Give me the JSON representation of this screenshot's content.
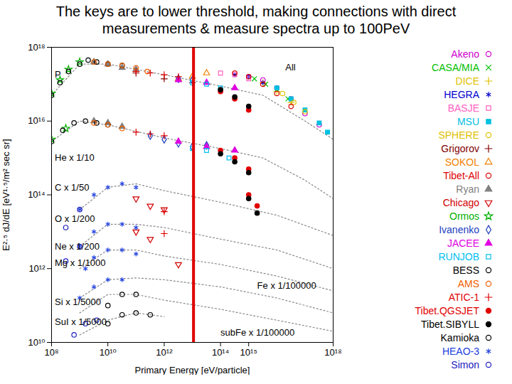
{
  "chart_data": {
    "type": "scatter",
    "title": "The keys are to lower threshold, making connections with direct measurements & measure spectra up to 100PeV",
    "x_label": "Primary Energy [eV/particle]",
    "y_label": "E²·⁵ dJ/dE [eV¹·⁵/m² sec sr]",
    "log": true,
    "grid": false,
    "legend": "right",
    "xlim": [
      100000000.0,
      1e+18
    ],
    "ylim": [
      10000000000.0,
      1e+18
    ],
    "xticks": [
      {
        "value": 100000000.0,
        "label": "10⁸"
      },
      {
        "value": 10000000000.0,
        "label": "10¹⁰"
      },
      {
        "value": 1000000000000.0,
        "label": "10¹²"
      },
      {
        "value": 100000000000000.0,
        "label": "10¹⁴"
      },
      {
        "value": 1000000000000000.0,
        "label": "10¹⁵"
      },
      {
        "value": 1e+18,
        "label": "10¹⁸"
      }
    ],
    "yticks": [
      {
        "value": 10000000000.0,
        "label": "10¹⁰"
      },
      {
        "value": 1000000000000.0,
        "label": "10¹²"
      },
      {
        "value": 100000000000000.0,
        "label": "10¹⁴"
      },
      {
        "value": 1e+16,
        "label": "10¹⁶"
      },
      {
        "value": 1e+18,
        "label": "10¹⁸"
      }
    ],
    "reference_line": {
      "x": 11000000000000.0,
      "color": "#e00000"
    },
    "annotations": [
      {
        "text": "P",
        "x": 130000000.0,
        "y": 1.8e+17
      },
      {
        "text": "He x 1/10",
        "x": 130000000.0,
        "y": 1000000000000000.0
      },
      {
        "text": "C x 1/50",
        "x": 130000000.0,
        "y": 160000000000000.0
      },
      {
        "text": "O x 1/200",
        "x": 130000000.0,
        "y": 22000000000000.0
      },
      {
        "text": "Ne x 1/200",
        "x": 130000000.0,
        "y": 4000000000000.0
      },
      {
        "text": "Mg x 1/1000",
        "x": 130000000.0,
        "y": 1400000000000.0
      },
      {
        "text": "Si x 1/5000",
        "x": 130000000.0,
        "y": 126000000000.0
      },
      {
        "text": "SuI x 1/5000",
        "x": 130000000.0,
        "y": 35000000000.0
      },
      {
        "text": "Fe x 1/100000",
        "x": 2000000000000000.0,
        "y": 350000000000.0
      },
      {
        "text": "subFe x 1/100000",
        "x": 100000000000000.0,
        "y": 18000000000.0
      },
      {
        "text": "All",
        "x": 2e+16,
        "y": 2.8e+17
      }
    ],
    "model_curves": [
      {
        "color": "#888888",
        "line_style": "dotted",
        "x": [
          100000000.0,
          1000000000.0,
          10000000000.0,
          1000000000000.0,
          100000000000000.0,
          3200000000000000.0,
          1e+17,
          1e+18
        ],
        "values": [
          5e+16,
          3.5e+17,
          3.5e+17,
          1.8e+17,
          8.9e+16,
          5e+16,
          1e+16,
          3200000000000000.0
        ]
      },
      {
        "color": "#888888",
        "line_style": "dotted",
        "x": [
          100000000.0,
          1000000000.0,
          10000000000.0,
          1000000000000.0,
          100000000000000.0,
          3200000000000000.0,
          1e+17,
          1e+18
        ],
        "values": [
          2800000000000000.0,
          1e+16,
          7900000000000000.0,
          3500000000000000.0,
          1800000000000000.0,
          1000000000000000.0,
          250000000000000.0,
          79000000000000.0
        ]
      },
      {
        "color": "#888888",
        "line_style": "dotted",
        "x": [
          1000000000.0,
          10000000000.0,
          100000000000.0,
          1000000000000.0,
          100000000000000.0,
          1e+16,
          1e+18
        ],
        "values": [
          40000000000000.0,
          160000000000000.0,
          200000000000000.0,
          130000000000000.0,
          63000000000000.0,
          28000000000000.0,
          7900000000000.0
        ]
      },
      {
        "color": "#888888",
        "line_style": "dotted",
        "x": [
          1000000000.0,
          10000000000.0,
          100000000000.0,
          1000000000000.0,
          100000000000000.0,
          1e+16,
          1e+18
        ],
        "values": [
          4000000000000.0,
          16000000000000.0,
          16000000000000.0,
          13000000000000.0,
          6300000000000.0,
          3200000000000.0,
          1000000000000.0
        ]
      },
      {
        "color": "#888888",
        "line_style": "dotted",
        "x": [
          1000000000.0,
          10000000000.0,
          100000000000.0,
          1000000000000.0,
          100000000000000.0,
          1e+16,
          1e+18
        ],
        "values": [
          1000000000000.0,
          3200000000000.0,
          3200000000000.0,
          2200000000000.0,
          1300000000000.0,
          630000000000.0,
          250000000000.0
        ]
      },
      {
        "color": "#888888",
        "line_style": "dotted",
        "x": [
          1000000000.0,
          10000000000.0,
          100000000000.0,
          1000000000000.0,
          100000000000000.0,
          1e+16,
          1e+18
        ],
        "values": [
          160000000000.0,
          500000000000.0,
          560000000000.0,
          500000000000.0,
          320000000000.0,
          160000000000.0,
          63000000000.0
        ]
      },
      {
        "color": "#888888",
        "line_style": "dotted",
        "x": [
          1000000000.0,
          10000000000.0,
          100000000000.0,
          1000000000000.0,
          100000000000000.0,
          1e+16,
          1e+18
        ],
        "values": [
          63000000000.0,
          200000000000.0,
          200000000000.0,
          140000000000.0,
          79000000000.0,
          40000000000.0,
          20000000000.0
        ]
      },
      {
        "color": "#888888",
        "line_style": "dotted",
        "x": [
          1000000000.0,
          10000000000.0,
          100000000000.0,
          1000000000000.0
        ],
        "values": [
          16000000000.0,
          40000000000.0,
          63000000000.0,
          50000000000.0
        ]
      }
    ],
    "series": [
      {
        "name": "Akeno",
        "color": "#d000d0",
        "marker": "circle",
        "x": [
          1000000000000000.0,
          3200000000000000.0,
          1e+16,
          3.2e+16,
          1e+17,
          3.2e+17
        ],
        "values": [
          1.6e+17,
          1.3e+17,
          7.9e+16,
          4e+16,
          1.6e+16,
          7900000000000000.0
        ]
      },
      {
        "name": "CASA/MIA",
        "color": "#00c000",
        "marker": "times",
        "x": [
          1600000000000000.0,
          4000000000000000.0,
          1e+16,
          2.5e+16
        ],
        "values": [
          1.4e+17,
          1e+17,
          7.1e+16,
          4e+16
        ]
      },
      {
        "name": "DICE",
        "color": "#e0c000",
        "marker": "plus",
        "x": [
          3200000000000000.0,
          1e+16,
          3.2e+16
        ],
        "values": [
          1.1e+17,
          6.3e+16,
          3.2e+16
        ]
      },
      {
        "name": "HEGRA",
        "color": "#0000d0",
        "marker": "asterisk",
        "x": [
          320000000000000.0,
          1000000000000000.0,
          3200000000000000.0,
          1e+16
        ],
        "values": [
          1.8e+17,
          1.6e+17,
          1.1e+17,
          7.9e+16
        ]
      },
      {
        "name": "BASJE",
        "color": "#ff60c0",
        "marker": "square",
        "x": [
          100000000000000.0,
          320000000000000.0,
          1000000000000000.0
        ],
        "values": [
          2e+17,
          1.8e+17,
          1.4e+17
        ]
      },
      {
        "name": "MSU",
        "color": "#00c0e0",
        "marker": "box",
        "x": [
          1e+16,
          3.2e+16,
          1e+17,
          3.2e+17,
          6.3e+17
        ],
        "values": [
          7.9e+16,
          4e+16,
          2e+16,
          8900000000000000.0,
          5000000000000000.0
        ]
      },
      {
        "name": "SPHERE",
        "color": "#e0c000",
        "marker": "circle",
        "x": [
          1.6e+16,
          4e+16,
          1e+17
        ],
        "values": [
          5.6e+16,
          3.2e+16,
          1.8e+16
        ]
      },
      {
        "name": "Grigorov",
        "color": "#800000",
        "marker": "plus",
        "x": [
          100000000000.0,
          1000000000000.0,
          10000000000000.0
        ],
        "values": [
          2e+17,
          1.4e+17,
          1.1e+17
        ]
      },
      {
        "name": "SOKOL",
        "color": "#f08000",
        "marker": "triangle",
        "x": [
          3200000000000.0,
          10000000000000.0,
          32000000000000.0
        ],
        "values": [
          1.4e+17,
          1.6e+17,
          2e+17
        ]
      },
      {
        "name": "Tibet-All",
        "color": "#e00000",
        "marker": "circle",
        "x": [
          320000000000000.0,
          1000000000000000.0,
          3200000000000000.0,
          1e+16,
          3.2e+16
        ],
        "values": [
          2e+17,
          1.6e+17,
          1e+17,
          5.6e+16,
          2.5e+16
        ]
      },
      {
        "name": "Ryan",
        "color": "#808080",
        "marker": "triangle-filled",
        "x": [
          3200000000.0,
          10000000000.0,
          32000000000.0,
          100000000000.0,
          3200000000.0,
          10000000000.0,
          32000000000.0
        ],
        "values": [
          4e+17,
          3.5e+17,
          2.8e+17,
          2.5e+17,
          1e+16,
          8900000000000000.0,
          7100000000000000.0
        ]
      },
      {
        "name": "Chicago",
        "color": "#d00000",
        "marker": "triangle-down",
        "x": [
          100000000000.0,
          320000000000.0,
          1000000000000.0,
          100000000000.0,
          320000000000.0,
          3200000000000.0
        ],
        "values": [
          79000000000000.0,
          50000000000000.0,
          40000000000000.0,
          10000000000000.0,
          6300000000000.0,
          1300000000000.0
        ]
      },
      {
        "name": "Ormos",
        "color": "#00b000",
        "marker": "star",
        "x": [
          100000000.0,
          200000000.0,
          400000000.0,
          1000000000.0,
          100000000.0,
          320000000.0
        ],
        "values": [
          5.6e+16,
          1.3e+17,
          2.5e+17,
          4e+17,
          3200000000000000.0,
          6300000000000000.0
        ]
      },
      {
        "name": "Ivanenko",
        "color": "#2040c0",
        "marker": "diamond",
        "x": [
          3200000000000.0,
          10000000000000.0,
          320000000000.0,
          1000000000000.0,
          3200000000000.0,
          10000000000000.0,
          32000000000000.0
        ],
        "values": [
          1.4e+17,
          1.3e+17,
          4000000000000000.0,
          3200000000000000.0,
          2500000000000000.0,
          2000000000000000.0,
          2200000000000000.0
        ]
      },
      {
        "name": "JACEE",
        "color": "#e000e0",
        "marker": "triangle-filled",
        "x": [
          3200000000000.0,
          32000000000000.0,
          320000000000000.0,
          3200000000000.0,
          32000000000000.0,
          320000000000000.0
        ],
        "values": [
          1.3e+17,
          1.1e+17,
          7.9e+16,
          2800000000000000.0,
          2000000000000000.0,
          1600000000000000.0
        ]
      },
      {
        "name": "RUNJOB",
        "color": "#00c0f0",
        "marker": "square",
        "x": [
          10000000000000.0,
          32000000000000.0,
          100000000000000.0,
          10000000000000.0,
          32000000000000.0,
          200000000000000.0
        ],
        "values": [
          1.1e+17,
          1e+17,
          7.9e+16,
          1800000000000000.0,
          1600000000000000.0,
          1000000000000000.0
        ]
      },
      {
        "name": "BESS",
        "color": "#000000",
        "marker": "circle",
        "x": [
          100000000.0,
          200000000.0,
          400000000.0,
          1000000000.0,
          2000000000.0,
          4000000000.0,
          10000000000.0,
          32000000000.0,
          100000000.0,
          250000000.0,
          630000000.0,
          1600000000.0,
          4000000000.0,
          10000000000.0
        ],
        "values": [
          5e+16,
          1.1e+17,
          2.2e+17,
          3.5e+17,
          4.5e+17,
          4e+17,
          3.5e+17,
          3.2e+17,
          2800000000000000.0,
          5600000000000000.0,
          8900000000000000.0,
          1e+16,
          8900000000000000.0,
          7900000000000000.0
        ]
      },
      {
        "name": "AMS",
        "color": "#f06000",
        "marker": "circle",
        "x": [
          3200000000.0,
          10000000000.0,
          32000000000.0,
          100000000000.0,
          250000000000.0,
          3200000000.0,
          10000000000.0,
          32000000000.0
        ],
        "values": [
          4e+17,
          3.5e+17,
          3.2e+17,
          2.8e+17,
          2.2e+17,
          8900000000000000.0,
          7900000000000000.0,
          6300000000000000.0
        ]
      },
      {
        "name": "ATIC-1",
        "color": "#e00000",
        "marker": "plus",
        "x": [
          100000000000.0,
          320000000000.0,
          1000000000000.0,
          3200000000000.0,
          100000000000.0,
          320000000000.0,
          1000000000000.0,
          1000000000000.0,
          1000000000000.0
        ],
        "values": [
          2.2e+17,
          2e+17,
          1.8e+17,
          1.6e+17,
          5000000000000000.0,
          4500000000000000.0,
          4000000000000000.0,
          35000000000000.0,
          8900000000000.0
        ]
      },
      {
        "name": "Tibet.QGSJET",
        "color": "#e00000",
        "marker": "dot",
        "x": [
          100000000000000.0,
          320000000000000.0,
          1000000000000000.0,
          100000000000000.0,
          320000000000000.0,
          1000000000000000.0,
          1000000000000000.0,
          2000000000000000.0
        ],
        "values": [
          6.3e+16,
          4e+16,
          2e+16,
          1600000000000000.0,
          1000000000000000.0,
          500000000000000.0,
          100000000000000.0,
          50000000000000.0
        ]
      },
      {
        "name": "Tibet.SIBYLL",
        "color": "#000000",
        "marker": "dot",
        "x": [
          100000000000000.0,
          320000000000000.0,
          1000000000000000.0,
          100000000000000.0,
          320000000000000.0,
          1000000000000000.0,
          1000000000000000.0,
          2000000000000000.0
        ],
        "values": [
          7.1e+16,
          4.5e+16,
          2.5e+16,
          1300000000000000.0,
          790000000000000.0,
          400000000000000.0,
          79000000000000.0,
          32000000000000.0
        ]
      },
      {
        "name": "Kamioka",
        "color": "#000000",
        "marker": "circle",
        "x": [
          10000000000.0,
          32000000000.0,
          100000000000.0,
          320000000000.0,
          10000000000.0,
          32000000000.0,
          100000000000.0
        ],
        "values": [
          32000000000.0,
          56000000000.0,
          63000000000.0,
          56000000000.0,
          100000000000.0,
          200000000000.0,
          200000000000.0
        ]
      },
      {
        "name": "HEAO-3",
        "color": "#2040e0",
        "marker": "asterisk",
        "x": [
          1000000000.0,
          3200000000.0,
          10000000000.0,
          32000000000.0,
          100000000000.0,
          1000000000.0,
          3200000000.0,
          10000000000.0,
          32000000000.0,
          100000000000.0,
          1600000000.0,
          3200000000.0,
          10000000000.0,
          32000000000.0,
          100000000000.0,
          1000000000.0,
          3200000000.0,
          10000000000.0,
          32000000000.0
        ],
        "values": [
          40000000000000.0,
          100000000000000.0,
          160000000000000.0,
          200000000000000.0,
          160000000000000.0,
          4000000000000.0,
          10000000000000.0,
          16000000000000.0,
          16000000000000.0,
          13000000000000.0,
          1000000000000.0,
          2000000000000.0,
          3200000000000.0,
          3200000000000.0,
          2500000000000.0,
          160000000000.0,
          320000000000.0,
          500000000000.0,
          500000000000.0
        ]
      },
      {
        "name": "Simon",
        "color": "#2020c0",
        "marker": "circle",
        "x": [
          320000000.0,
          1000000000.0,
          320000000.0,
          1000000000.0,
          630000000.0,
          1600000000.0,
          4000000000.0
        ],
        "values": [
          13000000000000.0,
          40000000000000.0,
          1600000000000.0,
          4000000000000.0,
          16000000000.0,
          32000000000.0,
          40000000000.0
        ]
      }
    ]
  }
}
